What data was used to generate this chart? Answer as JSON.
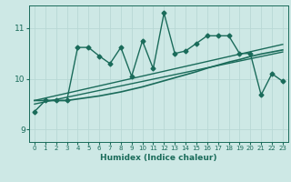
{
  "xlabel": "Humidex (Indice chaleur)",
  "bg_color": "#cde8e5",
  "line_color": "#1a6b5a",
  "grid_color": "#b8d8d5",
  "xlim": [
    -0.5,
    23.5
  ],
  "ylim": [
    8.75,
    11.45
  ],
  "yticks": [
    9,
    10,
    11
  ],
  "xticks": [
    0,
    1,
    2,
    3,
    4,
    5,
    6,
    7,
    8,
    9,
    10,
    11,
    12,
    13,
    14,
    15,
    16,
    17,
    18,
    19,
    20,
    21,
    22,
    23
  ],
  "series1_x": [
    0,
    1,
    2,
    3,
    4,
    5,
    6,
    7,
    8,
    9,
    10,
    11,
    12,
    13,
    14,
    15,
    16,
    17,
    18,
    19,
    20,
    21,
    22,
    23
  ],
  "series1_y": [
    9.35,
    9.57,
    9.57,
    9.57,
    10.62,
    10.62,
    10.45,
    10.3,
    10.62,
    10.05,
    10.75,
    10.2,
    11.3,
    10.5,
    10.55,
    10.7,
    10.85,
    10.85,
    10.85,
    10.5,
    10.5,
    9.68,
    10.1,
    9.95
  ],
  "series2_x": [
    0,
    1,
    2,
    3,
    4,
    5,
    6,
    7,
    8,
    9,
    10,
    11,
    12,
    13,
    14,
    15,
    16,
    17,
    18,
    19,
    20,
    21,
    22,
    23
  ],
  "series2_y": [
    9.57,
    9.57,
    9.57,
    9.57,
    9.6,
    9.63,
    9.66,
    9.7,
    9.74,
    9.79,
    9.84,
    9.9,
    9.96,
    10.02,
    10.08,
    10.14,
    10.21,
    10.27,
    10.33,
    10.38,
    10.44,
    10.49,
    10.53,
    10.57
  ],
  "series3_x": [
    0,
    23
  ],
  "series3_y": [
    9.57,
    10.68
  ],
  "series4_x": [
    0,
    23
  ],
  "series4_y": [
    9.5,
    10.53
  ]
}
